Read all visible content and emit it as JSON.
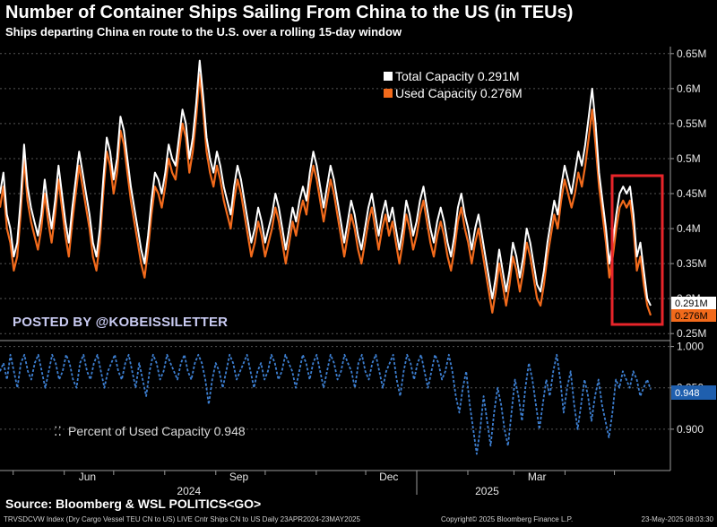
{
  "header": {
    "title": "Number of Container Ships Sailing From China to the US (in TEUs)",
    "subtitle": "Ships departing China en route to the U.S. over a rolling 15-day window"
  },
  "watermark": "POSTED BY @KOBEISSILETTER",
  "source": "Source: Bloomberg & WSL POLITICS<GO>",
  "footer": {
    "left": "TRVSDCVW Index (Dry Cargo Vessel TEU CN to US) LIVE Cntr Ships CN to US  Daily 23APR2024-23MAY2025",
    "center": "Copyright© 2025 Bloomberg Finance L.P.",
    "right": "23-May-2025 08:03:30"
  },
  "colors": {
    "total": "#ffffff",
    "used": "#f26a1b",
    "percent": "#3d7fd1",
    "highlight_box": "#e8252a",
    "tag_blue": "#1f5fae"
  },
  "chart_data": [
    {
      "type": "line",
      "x_start": "2024-04-23",
      "x_end": "2025-05-23",
      "x_ticks": [
        "Jun",
        "Sep",
        "Dec",
        "Mar"
      ],
      "year_labels": [
        "2024",
        "2025"
      ],
      "ylim": [
        0.24,
        0.66
      ],
      "y_ticks": [
        "0.65M",
        "0.6M",
        "0.55M",
        "0.5M",
        "0.45M",
        "0.4M",
        "0.35M",
        "0.3M",
        "0.25M"
      ],
      "legend_position": "top-right",
      "last_value_tags": [
        "0.291M",
        "0.276M"
      ],
      "series": [
        {
          "name": "Total Capacity 0.291M",
          "values": [
            0.45,
            0.48,
            0.42,
            0.4,
            0.36,
            0.38,
            0.44,
            0.52,
            0.46,
            0.43,
            0.41,
            0.39,
            0.42,
            0.47,
            0.43,
            0.4,
            0.44,
            0.49,
            0.45,
            0.41,
            0.38,
            0.43,
            0.47,
            0.51,
            0.48,
            0.45,
            0.42,
            0.38,
            0.36,
            0.4,
            0.47,
            0.53,
            0.51,
            0.47,
            0.5,
            0.56,
            0.54,
            0.5,
            0.46,
            0.43,
            0.4,
            0.37,
            0.35,
            0.39,
            0.44,
            0.48,
            0.47,
            0.45,
            0.48,
            0.52,
            0.5,
            0.49,
            0.53,
            0.57,
            0.55,
            0.5,
            0.53,
            0.58,
            0.64,
            0.59,
            0.53,
            0.5,
            0.48,
            0.51,
            0.49,
            0.46,
            0.44,
            0.42,
            0.46,
            0.49,
            0.47,
            0.44,
            0.41,
            0.38,
            0.4,
            0.43,
            0.41,
            0.38,
            0.4,
            0.42,
            0.45,
            0.43,
            0.4,
            0.37,
            0.4,
            0.43,
            0.41,
            0.44,
            0.46,
            0.44,
            0.48,
            0.51,
            0.49,
            0.46,
            0.43,
            0.46,
            0.49,
            0.47,
            0.44,
            0.41,
            0.38,
            0.41,
            0.44,
            0.42,
            0.39,
            0.37,
            0.4,
            0.43,
            0.45,
            0.42,
            0.39,
            0.42,
            0.44,
            0.41,
            0.43,
            0.4,
            0.37,
            0.4,
            0.44,
            0.42,
            0.39,
            0.41,
            0.44,
            0.46,
            0.43,
            0.4,
            0.38,
            0.41,
            0.43,
            0.41,
            0.38,
            0.36,
            0.39,
            0.43,
            0.45,
            0.42,
            0.4,
            0.37,
            0.4,
            0.42,
            0.39,
            0.36,
            0.33,
            0.3,
            0.33,
            0.37,
            0.34,
            0.31,
            0.34,
            0.38,
            0.36,
            0.33,
            0.36,
            0.4,
            0.38,
            0.35,
            0.32,
            0.31,
            0.34,
            0.38,
            0.41,
            0.44,
            0.42,
            0.46,
            0.49,
            0.47,
            0.45,
            0.48,
            0.51,
            0.49,
            0.52,
            0.56,
            0.6,
            0.55,
            0.48,
            0.44,
            0.4,
            0.35,
            0.38,
            0.42,
            0.45,
            0.46,
            0.45,
            0.46,
            0.42,
            0.36,
            0.38,
            0.34,
            0.3,
            0.29
          ]
        },
        {
          "name": "Used Capacity 0.276M",
          "values": [
            0.43,
            0.46,
            0.4,
            0.38,
            0.34,
            0.36,
            0.42,
            0.5,
            0.44,
            0.41,
            0.39,
            0.37,
            0.4,
            0.45,
            0.41,
            0.38,
            0.42,
            0.47,
            0.43,
            0.39,
            0.36,
            0.41,
            0.45,
            0.49,
            0.46,
            0.43,
            0.4,
            0.36,
            0.34,
            0.38,
            0.45,
            0.51,
            0.49,
            0.45,
            0.48,
            0.54,
            0.52,
            0.48,
            0.44,
            0.41,
            0.38,
            0.35,
            0.33,
            0.37,
            0.42,
            0.46,
            0.45,
            0.43,
            0.46,
            0.5,
            0.48,
            0.47,
            0.51,
            0.55,
            0.53,
            0.48,
            0.51,
            0.56,
            0.62,
            0.57,
            0.51,
            0.48,
            0.46,
            0.49,
            0.47,
            0.44,
            0.42,
            0.4,
            0.44,
            0.47,
            0.45,
            0.42,
            0.39,
            0.36,
            0.38,
            0.41,
            0.39,
            0.36,
            0.38,
            0.4,
            0.43,
            0.41,
            0.38,
            0.35,
            0.38,
            0.41,
            0.39,
            0.42,
            0.44,
            0.42,
            0.46,
            0.49,
            0.47,
            0.44,
            0.41,
            0.44,
            0.47,
            0.45,
            0.42,
            0.39,
            0.36,
            0.39,
            0.42,
            0.4,
            0.37,
            0.35,
            0.38,
            0.41,
            0.43,
            0.4,
            0.37,
            0.4,
            0.42,
            0.39,
            0.41,
            0.38,
            0.35,
            0.38,
            0.42,
            0.4,
            0.37,
            0.39,
            0.42,
            0.44,
            0.41,
            0.38,
            0.36,
            0.39,
            0.41,
            0.39,
            0.36,
            0.34,
            0.37,
            0.41,
            0.43,
            0.4,
            0.38,
            0.35,
            0.38,
            0.4,
            0.37,
            0.34,
            0.31,
            0.28,
            0.31,
            0.35,
            0.32,
            0.29,
            0.32,
            0.36,
            0.34,
            0.31,
            0.34,
            0.38,
            0.36,
            0.33,
            0.3,
            0.29,
            0.32,
            0.36,
            0.39,
            0.42,
            0.4,
            0.44,
            0.47,
            0.45,
            0.43,
            0.45,
            0.48,
            0.46,
            0.49,
            0.53,
            0.57,
            0.52,
            0.46,
            0.42,
            0.38,
            0.33,
            0.36,
            0.4,
            0.43,
            0.44,
            0.43,
            0.44,
            0.4,
            0.34,
            0.36,
            0.32,
            0.29,
            0.276
          ]
        }
      ]
    },
    {
      "type": "line",
      "x_start": "2024-04-23",
      "x_end": "2025-05-23",
      "ylim": [
        0.85,
        1.005
      ],
      "y_ticks": [
        "1.000",
        "0.950",
        "0.900"
      ],
      "legend_position": "bottom-left",
      "last_value_tags": [
        "0.948"
      ],
      "series": [
        {
          "name": "Percent of Used Capacity 0.948",
          "values": [
            0.97,
            0.98,
            0.96,
            0.99,
            0.97,
            0.95,
            0.98,
            0.99,
            0.97,
            0.96,
            0.98,
            0.99,
            0.97,
            0.95,
            0.97,
            0.99,
            0.98,
            0.96,
            0.97,
            0.99,
            0.98,
            0.96,
            0.95,
            0.98,
            0.99,
            0.97,
            0.96,
            0.98,
            0.99,
            0.97,
            0.95,
            0.97,
            0.98,
            0.99,
            0.97,
            0.96,
            0.98,
            0.99,
            0.97,
            0.95,
            0.98,
            0.96,
            0.94,
            0.97,
            0.99,
            0.98,
            0.96,
            0.97,
            0.99,
            0.98,
            0.97,
            0.96,
            0.98,
            0.99,
            0.97,
            0.96,
            0.98,
            0.99,
            0.98,
            0.96,
            0.93,
            0.96,
            0.98,
            0.97,
            0.95,
            0.97,
            0.99,
            0.98,
            0.96,
            0.97,
            0.98,
            0.99,
            0.97,
            0.95,
            0.97,
            0.98,
            0.96,
            0.97,
            0.99,
            0.98,
            0.96,
            0.97,
            0.99,
            0.98,
            0.97,
            0.95,
            0.97,
            0.99,
            0.98,
            0.96,
            0.98,
            0.99,
            0.97,
            0.95,
            0.97,
            0.99,
            0.98,
            0.96,
            0.97,
            0.99,
            0.98,
            0.97,
            0.95,
            0.98,
            0.99,
            0.97,
            0.96,
            0.98,
            0.99,
            0.97,
            0.95,
            0.97,
            0.98,
            0.99,
            0.96,
            0.94,
            0.97,
            0.99,
            0.98,
            0.96,
            0.98,
            0.99,
            0.97,
            0.95,
            0.97,
            0.99,
            0.98,
            0.96,
            0.97,
            0.99,
            0.97,
            0.94,
            0.92,
            0.95,
            0.97,
            0.93,
            0.9,
            0.87,
            0.9,
            0.94,
            0.91,
            0.88,
            0.92,
            0.95,
            0.93,
            0.9,
            0.88,
            0.92,
            0.96,
            0.94,
            0.91,
            0.95,
            0.98,
            0.96,
            0.93,
            0.9,
            0.93,
            0.96,
            0.94,
            0.97,
            0.99,
            0.96,
            0.92,
            0.95,
            0.97,
            0.93,
            0.9,
            0.93,
            0.96,
            0.94,
            0.91,
            0.94,
            0.96,
            0.93,
            0.91,
            0.89,
            0.92,
            0.96,
            0.95,
            0.97,
            0.96,
            0.95,
            0.97,
            0.96,
            0.94,
            0.95,
            0.96,
            0.948
          ]
        }
      ]
    }
  ]
}
